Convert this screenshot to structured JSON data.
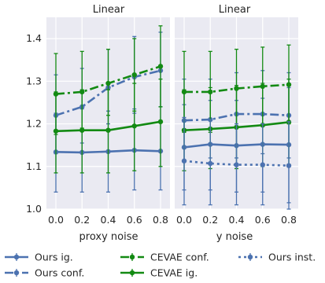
{
  "colors": {
    "blue": "#4C72B0",
    "green": "#138A13",
    "panel_bg": "#EAEAF2",
    "grid": "#ffffff"
  },
  "chart_data": [
    {
      "type": "line",
      "title": "Linear",
      "xlabel": "proxy noise",
      "ylabel": "",
      "x": [
        0.0,
        0.2,
        0.4,
        0.6,
        0.8
      ],
      "x_tick_labels": [
        "0.0",
        "0.2",
        "0.4",
        "0.6",
        "0.8"
      ],
      "ylim": [
        1.0,
        1.45
      ],
      "y_ticks": [
        1.0,
        1.1,
        1.2,
        1.3,
        1.4
      ],
      "y_tick_labels": [
        "1.0",
        "1.1",
        "1.2",
        "1.3",
        "1.4"
      ],
      "grid": true,
      "series": [
        {
          "name": "Ours ig.",
          "color": "blue",
          "dash": "solid",
          "values": [
            1.134,
            1.133,
            1.135,
            1.138,
            1.136
          ],
          "lower": [
            1.04,
            1.04,
            1.04,
            1.045,
            1.045
          ],
          "upper": [
            1.225,
            1.235,
            1.23,
            1.235,
            1.24
          ]
        },
        {
          "name": "Ours conf.",
          "color": "blue",
          "dash": "dashdot",
          "values": [
            1.22,
            1.24,
            1.285,
            1.31,
            1.325
          ],
          "lower": [
            1.13,
            1.155,
            1.2,
            1.225,
            1.24
          ],
          "upper": [
            1.315,
            1.33,
            1.375,
            1.405,
            1.415
          ]
        },
        {
          "name": "CEVAE conf.",
          "color": "green",
          "dash": "dashdot",
          "values": [
            1.27,
            1.275,
            1.295,
            1.315,
            1.335
          ],
          "lower": [
            1.175,
            1.19,
            1.22,
            1.23,
            1.24
          ],
          "upper": [
            1.365,
            1.37,
            1.375,
            1.4,
            1.43
          ]
        },
        {
          "name": "CEVAE ig.",
          "color": "green",
          "dash": "solid",
          "values": [
            1.183,
            1.185,
            1.185,
            1.195,
            1.205
          ],
          "lower": [
            1.085,
            1.085,
            1.085,
            1.09,
            1.1
          ],
          "upper": [
            1.275,
            1.28,
            1.28,
            1.295,
            1.305
          ]
        }
      ]
    },
    {
      "type": "line",
      "title": "Linear",
      "xlabel": "y noise",
      "ylabel": "",
      "x": [
        0.0,
        0.2,
        0.4,
        0.6,
        0.8
      ],
      "x_tick_labels": [
        "0.0",
        "0.2",
        "0.4",
        "0.6",
        "0.8"
      ],
      "ylim": [
        1.0,
        1.45
      ],
      "y_ticks": [
        1.0,
        1.1,
        1.2,
        1.3,
        1.4
      ],
      "grid": true,
      "series": [
        {
          "name": "Ours ig.",
          "color": "blue",
          "dash": "solid",
          "values": [
            1.145,
            1.152,
            1.149,
            1.152,
            1.151
          ],
          "lower": [
            1.045,
            1.045,
            1.04,
            1.04,
            1.015
          ],
          "upper": [
            1.245,
            1.255,
            1.255,
            1.26,
            1.285
          ]
        },
        {
          "name": "Ours conf.",
          "color": "blue",
          "dash": "dashdot",
          "values": [
            1.208,
            1.21,
            1.223,
            1.223,
            1.22
          ],
          "lower": [
            1.11,
            1.12,
            1.12,
            1.13,
            1.12
          ],
          "upper": [
            1.305,
            1.305,
            1.32,
            1.325,
            1.32
          ]
        },
        {
          "name": "CEVAE conf.",
          "color": "green",
          "dash": "dashdot",
          "values": [
            1.275,
            1.275,
            1.283,
            1.288,
            1.292
          ],
          "lower": [
            1.18,
            1.18,
            1.19,
            1.2,
            1.2
          ],
          "upper": [
            1.37,
            1.37,
            1.375,
            1.38,
            1.385
          ]
        },
        {
          "name": "CEVAE ig.",
          "color": "green",
          "dash": "solid",
          "values": [
            1.185,
            1.188,
            1.192,
            1.197,
            1.204
          ],
          "lower": [
            1.09,
            1.095,
            1.095,
            1.1,
            1.105
          ],
          "upper": [
            1.28,
            1.285,
            1.29,
            1.295,
            1.305
          ]
        },
        {
          "name": "Ours inst.",
          "color": "blue",
          "dash": "dotted",
          "values": [
            1.113,
            1.107,
            1.104,
            1.104,
            1.102
          ],
          "lower": [
            1.01,
            1.01,
            1.01,
            1.01,
            1.0
          ],
          "upper": [
            1.215,
            1.21,
            1.2,
            1.2,
            1.205
          ]
        }
      ]
    }
  ],
  "legend": {
    "placement": "bottom",
    "items": [
      {
        "label": "Ours ig.",
        "color": "blue",
        "dash": "solid"
      },
      {
        "label": "CEVAE conf.",
        "color": "green",
        "dash": "dashdot"
      },
      {
        "label": "Ours inst.",
        "color": "blue",
        "dash": "dotted"
      },
      {
        "label": "Ours conf.",
        "color": "blue",
        "dash": "dashdot"
      },
      {
        "label": "CEVAE ig.",
        "color": "green",
        "dash": "solid"
      }
    ]
  }
}
